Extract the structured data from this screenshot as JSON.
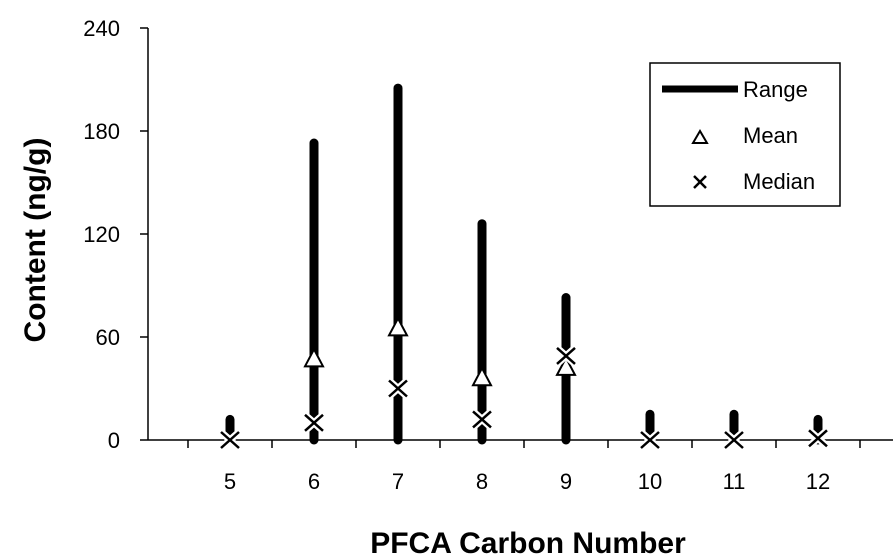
{
  "chart_data": {
    "type": "scatter",
    "title": "",
    "xlabel": "PFCA Carbon Number",
    "ylabel": "Content (ng/g)",
    "categories": [
      "5",
      "6",
      "7",
      "8",
      "9",
      "10",
      "11",
      "12"
    ],
    "y_ticks": [
      "0",
      "60",
      "120",
      "180",
      "240"
    ],
    "ylim": [
      0,
      240
    ],
    "grid": false,
    "legend_position": "top-right",
    "series": [
      {
        "name": "Range",
        "kind": "range",
        "min": [
          0,
          0,
          0,
          0,
          0,
          0,
          0,
          0
        ],
        "max": [
          12,
          173,
          205,
          126,
          83,
          15,
          15,
          12
        ]
      },
      {
        "name": "Mean",
        "kind": "triangle",
        "values": [
          null,
          47,
          65,
          36,
          42,
          null,
          null,
          null
        ]
      },
      {
        "name": "Median",
        "kind": "x",
        "values": [
          0,
          10,
          30,
          12,
          49,
          0,
          0,
          1
        ]
      }
    ]
  }
}
